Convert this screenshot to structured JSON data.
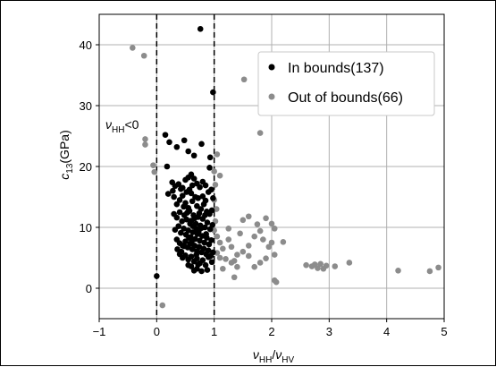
{
  "chart_data": {
    "type": "scatter",
    "title": "",
    "xlabel": {
      "base1": "ν",
      "sub1": "HH",
      "sep": "/",
      "base2": "ν",
      "sub2": "HV"
    },
    "ylabel": {
      "base": "c",
      "sub": "13",
      "unit": "(GPa)"
    },
    "xlim": [
      -1,
      5
    ],
    "ylim": [
      -5,
      45
    ],
    "xticks": [
      -1,
      0,
      1,
      2,
      3,
      4,
      5
    ],
    "yticks": [
      0,
      10,
      20,
      30,
      40
    ],
    "xtick_labels": [
      "−1",
      "0",
      "1",
      "2",
      "3",
      "4",
      "5"
    ],
    "ytick_labels": [
      "0",
      "10",
      "20",
      "30",
      "40"
    ],
    "grid": true,
    "legend_position": "top-right",
    "annotation": {
      "base": "ν",
      "sub": "HH",
      "rest": "<0"
    },
    "vlines": [
      0,
      1
    ],
    "colors": {
      "in_bounds": "#000000",
      "out_of_bounds": "#8c8c8c",
      "grid": "#b0b0b0"
    },
    "series": [
      {
        "name": "In bounds(137)",
        "color": "#000000",
        "points": [
          [
            0.76,
            42.6
          ],
          [
            0.98,
            32.2
          ],
          [
            0.15,
            25.2
          ],
          [
            0.22,
            24.0
          ],
          [
            0.35,
            23.2
          ],
          [
            0.48,
            24.3
          ],
          [
            0.55,
            22.5
          ],
          [
            0.65,
            21.8
          ],
          [
            0.78,
            23.7
          ],
          [
            0.93,
            21.5
          ],
          [
            0.18,
            20.0
          ],
          [
            0.92,
            19.8
          ],
          [
            0.27,
            17.4
          ],
          [
            0.32,
            16.8
          ],
          [
            0.38,
            17.1
          ],
          [
            0.45,
            16.5
          ],
          [
            0.5,
            17.8
          ],
          [
            0.55,
            18.2
          ],
          [
            0.6,
            18.7
          ],
          [
            0.65,
            18.0
          ],
          [
            0.7,
            17.2
          ],
          [
            0.75,
            16.6
          ],
          [
            0.8,
            17.5
          ],
          [
            0.85,
            16.9
          ],
          [
            0.9,
            15.8
          ],
          [
            0.95,
            16.2
          ],
          [
            0.98,
            14.8
          ],
          [
            0.2,
            15.5
          ],
          [
            0.3,
            15.0
          ],
          [
            0.35,
            13.8
          ],
          [
            0.4,
            14.5
          ],
          [
            0.45,
            15.2
          ],
          [
            0.5,
            14.0
          ],
          [
            0.55,
            13.2
          ],
          [
            0.6,
            15.6
          ],
          [
            0.62,
            14.3
          ],
          [
            0.67,
            15.0
          ],
          [
            0.7,
            13.5
          ],
          [
            0.72,
            14.8
          ],
          [
            0.77,
            13.0
          ],
          [
            0.82,
            13.8
          ],
          [
            0.87,
            12.6
          ],
          [
            0.92,
            12.2
          ],
          [
            0.96,
            12.8
          ],
          [
            0.3,
            12.2
          ],
          [
            0.35,
            11.6
          ],
          [
            0.4,
            12.5
          ],
          [
            0.44,
            11.0
          ],
          [
            0.48,
            12.0
          ],
          [
            0.52,
            11.3
          ],
          [
            0.57,
            12.7
          ],
          [
            0.6,
            11.1
          ],
          [
            0.64,
            12.0
          ],
          [
            0.68,
            10.6
          ],
          [
            0.72,
            11.7
          ],
          [
            0.76,
            10.3
          ],
          [
            0.8,
            11.4
          ],
          [
            0.84,
            10.0
          ],
          [
            0.88,
            10.8
          ],
          [
            0.93,
            9.7
          ],
          [
            0.97,
            10.4
          ],
          [
            0.32,
            9.6
          ],
          [
            0.38,
            10.2
          ],
          [
            0.42,
            9.1
          ],
          [
            0.47,
            9.8
          ],
          [
            0.51,
            8.8
          ],
          [
            0.55,
            9.5
          ],
          [
            0.59,
            8.4
          ],
          [
            0.63,
            9.2
          ],
          [
            0.67,
            8.1
          ],
          [
            0.71,
            8.9
          ],
          [
            0.75,
            7.8
          ],
          [
            0.79,
            8.6
          ],
          [
            0.83,
            7.5
          ],
          [
            0.87,
            8.3
          ],
          [
            0.91,
            7.2
          ],
          [
            0.95,
            7.9
          ],
          [
            0.35,
            8.0
          ],
          [
            0.4,
            7.4
          ],
          [
            0.45,
            7.0
          ],
          [
            0.5,
            7.7
          ],
          [
            0.54,
            6.7
          ],
          [
            0.58,
            7.3
          ],
          [
            0.62,
            6.4
          ],
          [
            0.66,
            7.0
          ],
          [
            0.7,
            6.1
          ],
          [
            0.74,
            6.8
          ],
          [
            0.78,
            5.9
          ],
          [
            0.82,
            6.5
          ],
          [
            0.86,
            5.6
          ],
          [
            0.9,
            6.2
          ],
          [
            0.94,
            5.3
          ],
          [
            0.98,
            5.9
          ],
          [
            0.4,
            5.6
          ],
          [
            0.45,
            5.0
          ],
          [
            0.5,
            5.4
          ],
          [
            0.55,
            4.7
          ],
          [
            0.6,
            5.2
          ],
          [
            0.65,
            4.4
          ],
          [
            0.7,
            4.9
          ],
          [
            0.75,
            4.1
          ],
          [
            0.8,
            4.6
          ],
          [
            0.85,
            3.8
          ],
          [
            0.6,
            3.6
          ],
          [
            0.7,
            3.2
          ],
          [
            0.78,
            2.8
          ],
          [
            0.88,
            3.0
          ],
          [
            0.55,
            3.8
          ],
          [
            0.65,
            2.9
          ],
          [
            0.52,
            15.8
          ],
          [
            0.57,
            16.2
          ],
          [
            0.62,
            16.9
          ],
          [
            0.47,
            13.4
          ],
          [
            0.53,
            12.4
          ],
          [
            0.58,
            10.6
          ],
          [
            0.63,
            10.2
          ],
          [
            0.69,
            9.7
          ],
          [
            0.73,
            9.3
          ],
          [
            0.78,
            9.9
          ],
          [
            0.66,
            11.5
          ],
          [
            0.74,
            12.3
          ],
          [
            0.8,
            15.1
          ],
          [
            0.85,
            14.4
          ],
          [
            0.36,
            6.4
          ],
          [
            0.43,
            6.0
          ],
          [
            0.48,
            6.9
          ],
          [
            0.56,
            8.3
          ],
          [
            0.61,
            7.7
          ],
          [
            0.69,
            5.5
          ],
          [
            0.72,
            3.9
          ],
          [
            0.96,
            4.3
          ],
          [
            0.9,
            5.1
          ],
          [
            0.86,
            8.9
          ],
          [
            0.84,
            12.0
          ],
          [
            0.42,
            16.3
          ],
          [
            0.28,
            16.0
          ],
          [
            0.0,
            2.0
          ]
        ]
      },
      {
        "name": "Out of bounds(66)",
        "color": "#8c8c8c",
        "points": [
          [
            -0.42,
            39.5
          ],
          [
            -0.22,
            38.2
          ],
          [
            -0.2,
            24.5
          ],
          [
            -0.2,
            23.6
          ],
          [
            -0.06,
            20.2
          ],
          [
            -0.04,
            19.1
          ],
          [
            0.1,
            -2.8
          ],
          [
            1.05,
            22.0
          ],
          [
            1.0,
            19.2
          ],
          [
            1.1,
            18.5
          ],
          [
            1.02,
            17.0
          ],
          [
            1.0,
            14.5
          ],
          [
            1.04,
            13.0
          ],
          [
            1.02,
            11.0
          ],
          [
            1.0,
            9.5
          ],
          [
            1.05,
            8.5
          ],
          [
            1.1,
            7.5
          ],
          [
            1.15,
            6.5
          ],
          [
            1.05,
            5.8
          ],
          [
            1.1,
            5.0
          ],
          [
            1.2,
            4.8
          ],
          [
            1.3,
            4.2
          ],
          [
            1.4,
            5.5
          ],
          [
            1.5,
            6.0
          ],
          [
            1.6,
            5.3
          ],
          [
            1.3,
            6.8
          ],
          [
            1.4,
            3.5
          ],
          [
            1.15,
            3.2
          ],
          [
            1.52,
            34.3
          ],
          [
            1.8,
            25.5
          ],
          [
            1.5,
            11.2
          ],
          [
            1.6,
            11.8
          ],
          [
            1.75,
            10.5
          ],
          [
            1.9,
            11.5
          ],
          [
            2.0,
            10.6
          ],
          [
            2.05,
            9.8
          ],
          [
            1.8,
            9.4
          ],
          [
            1.7,
            8.5
          ],
          [
            1.85,
            8.0
          ],
          [
            2.0,
            7.5
          ],
          [
            1.95,
            6.8
          ],
          [
            2.2,
            7.6
          ],
          [
            2.05,
            5.5
          ],
          [
            1.9,
            4.9
          ],
          [
            1.8,
            4.2
          ],
          [
            1.7,
            3.5
          ],
          [
            1.35,
            1.8
          ],
          [
            2.05,
            1.3
          ],
          [
            2.08,
            1.0
          ],
          [
            2.6,
            3.8
          ],
          [
            2.7,
            3.6
          ],
          [
            2.75,
            3.9
          ],
          [
            2.8,
            3.3
          ],
          [
            2.85,
            4.0
          ],
          [
            2.9,
            3.2
          ],
          [
            2.95,
            3.7
          ],
          [
            3.1,
            3.6
          ],
          [
            3.35,
            4.2
          ],
          [
            4.2,
            2.9
          ],
          [
            4.75,
            2.8
          ],
          [
            4.9,
            3.4
          ],
          [
            1.25,
            8.0
          ],
          [
            1.45,
            9.0
          ],
          [
            1.6,
            7.0
          ],
          [
            1.25,
            9.8
          ],
          [
            1.35,
            4.5
          ]
        ]
      }
    ]
  }
}
